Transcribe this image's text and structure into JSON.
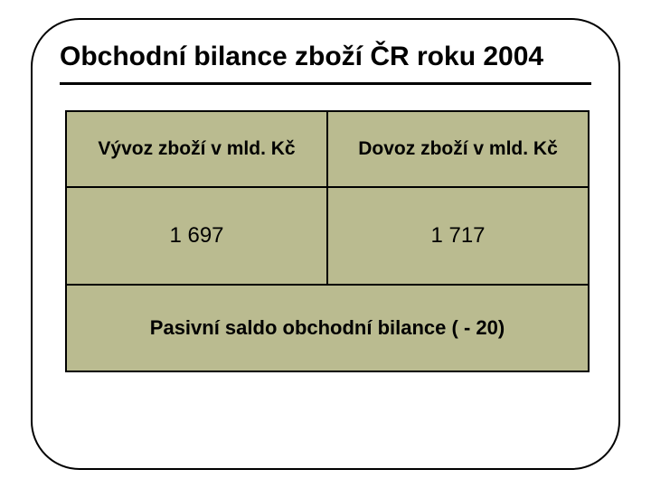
{
  "title": "Obchodní bilance zboží ČR roku 2004",
  "table": {
    "type": "table",
    "background_color": "#babb90",
    "border_color": "#000000",
    "text_color": "#000000",
    "header_fontsize": 21,
    "value_fontsize": 24,
    "summary_fontsize": 22,
    "columns": [
      {
        "label": "Vývoz zboží v mld. Kč"
      },
      {
        "label": "Dovoz zboží v mld. Kč"
      }
    ],
    "values": [
      "1 697",
      "1 717"
    ],
    "summary": "Pasivní saldo obchodní bilance ( - 20)"
  },
  "frame": {
    "border_color": "#000000",
    "border_radius": 54,
    "background_color": "#ffffff"
  }
}
